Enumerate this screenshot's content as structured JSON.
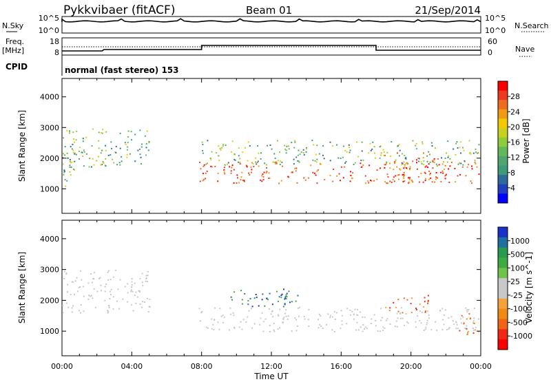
{
  "header": {
    "station": "Pykkvibaer (fitACF)",
    "beam": "Beam 01",
    "date": "21/Sep/2014"
  },
  "nsky_panel": {
    "left_label": "N.Sky",
    "left_ticks": [
      "10^5",
      "10^0"
    ],
    "right_label": "N.Search",
    "right_ticks": [
      "10^5",
      "10^0"
    ]
  },
  "freq_panel": {
    "left_label_top": "Freq.",
    "left_label_unit": "[MHz]",
    "left_ticks": [
      "18",
      "8"
    ],
    "right_label": "Nave",
    "right_ticks": [
      "60",
      "0"
    ]
  },
  "cpid_panel": {
    "label": "CPID",
    "text": "normal (fast stereo) 153"
  },
  "chart_data": [
    {
      "type": "heatmap",
      "name": "power",
      "ylabel": "Slant Range [km]",
      "yticks": [
        "1000",
        "2000",
        "3000",
        "4000"
      ],
      "ylim": [
        200,
        4600
      ],
      "xlim": [
        0,
        24
      ],
      "colorbar": {
        "label": "Power [dB]",
        "ticks": [
          "4",
          "8",
          "12",
          "16",
          "20",
          "24",
          "28"
        ],
        "colors": [
          "#0000ff",
          "#2040c0",
          "#2f6a9a",
          "#3f9a7a",
          "#4fa66f",
          "#64b85c",
          "#8fcc3a",
          "#c8d21e",
          "#f2c900",
          "#f39a14",
          "#ef6b1e",
          "#ec3a1e",
          "#ff0000"
        ]
      },
      "regions": [
        {
          "t": [
            0.0,
            5.0
          ],
          "r": [
            1700,
            3000
          ],
          "level": "medium"
        },
        {
          "t": [
            0.0,
            1.0
          ],
          "r": [
            1100,
            2600
          ],
          "level": "medium"
        },
        {
          "t": [
            7.8,
            24.0
          ],
          "r": [
            1200,
            1900
          ],
          "level": "high"
        },
        {
          "t": [
            8.0,
            24.0
          ],
          "r": [
            1800,
            2600
          ],
          "level": "medium"
        },
        {
          "t": [
            18.0,
            22.0
          ],
          "r": [
            1200,
            2200
          ],
          "level": "high"
        }
      ]
    },
    {
      "type": "heatmap",
      "name": "velocity",
      "ylabel": "Slant Range [km]",
      "yticks": [
        "1000",
        "2000",
        "3000",
        "4000"
      ],
      "ylim": [
        200,
        4600
      ],
      "xlim": [
        0,
        24
      ],
      "colorbar": {
        "label": "Velocity [m s^-1]",
        "ticks": [
          "1000",
          "500",
          "100",
          "25",
          "-25",
          "-100",
          "-500",
          "-1000"
        ],
        "colors": [
          "#1a32c8",
          "#1f6fa0",
          "#2a9a50",
          "#3faa3f",
          "#6fc24a",
          "#c8c8c8",
          "#c8c8c8",
          "#f5a13c",
          "#f08a14",
          "#f06414",
          "#ee2a14",
          "#ff0000"
        ]
      },
      "regions": [
        {
          "t": [
            0.0,
            5.0
          ],
          "r": [
            1600,
            3000
          ],
          "level": "low"
        },
        {
          "t": [
            7.8,
            24.0
          ],
          "r": [
            1000,
            1800
          ],
          "level": "low"
        },
        {
          "t": [
            9.5,
            14.0
          ],
          "r": [
            1800,
            2400
          ],
          "level": "toward"
        },
        {
          "t": [
            18.5,
            21.0
          ],
          "r": [
            1600,
            2200
          ],
          "level": "away"
        },
        {
          "t": [
            22.5,
            24.0
          ],
          "r": [
            900,
            1600
          ],
          "level": "away"
        }
      ]
    }
  ],
  "x_axis": {
    "label": "Time UT",
    "ticks": [
      "00:00",
      "04:00",
      "08:00",
      "12:00",
      "16:00",
      "20:00",
      "00:00"
    ]
  }
}
